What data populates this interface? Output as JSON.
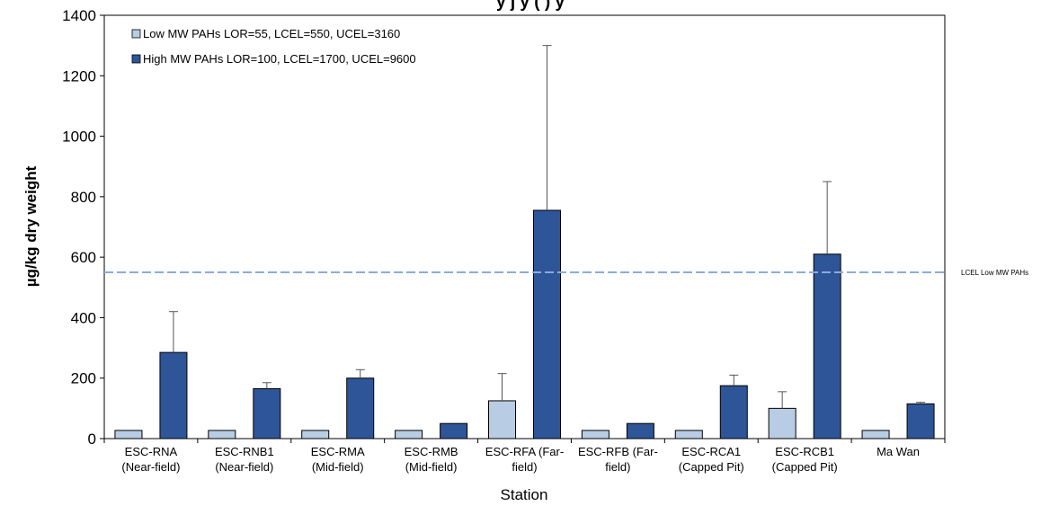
{
  "chart_data": {
    "type": "bar",
    "title": "y j y (  )  y",
    "xlabel": "Station",
    "ylabel": "µg/kg dry weight",
    "ylim": [
      0,
      1400
    ],
    "yticks": [
      0,
      200,
      400,
      600,
      800,
      1000,
      1200,
      1400
    ],
    "categories": [
      [
        "ESC-RNA",
        "(Near-field)"
      ],
      [
        "ESC-RNB1",
        "(Near-field)"
      ],
      [
        "ESC-RMA",
        "(Mid-field)"
      ],
      [
        "ESC-RMB",
        "(Mid-field)"
      ],
      [
        "ESC-RFA (Far-",
        "field)"
      ],
      [
        "ESC-RFB (Far-",
        "field)"
      ],
      [
        "ESC-RCA1",
        "(Capped Pit)"
      ],
      [
        "ESC-RCB1",
        "(Capped Pit)"
      ],
      [
        "Ma Wan",
        ""
      ]
    ],
    "series": [
      {
        "name": "Low MW PAHs LOR=55, LCEL=550, UCEL=3160",
        "color": "#b8cce4",
        "values": [
          27,
          27,
          27,
          27,
          125,
          27,
          27,
          100,
          27
        ],
        "errors": [
          0,
          0,
          0,
          0,
          90,
          0,
          0,
          55,
          0
        ]
      },
      {
        "name": "High MW PAHs LOR=100, LCEL=1700, UCEL=9600",
        "color": "#2e5597",
        "values": [
          285,
          165,
          200,
          50,
          755,
          50,
          175,
          610,
          115
        ],
        "errors": [
          135,
          20,
          28,
          0,
          545,
          0,
          35,
          240,
          5
        ]
      }
    ],
    "reference_line": {
      "value": 550,
      "label": "LCEL Low MW PAHs",
      "color": "#8eaadb",
      "style": "dashed"
    },
    "legend_position": "top-left",
    "grid": false
  }
}
